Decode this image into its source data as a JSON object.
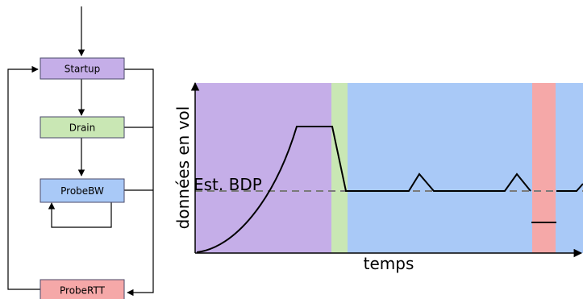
{
  "state_machine": {
    "states": [
      {
        "id": "startup",
        "label": "Startup",
        "color": "#c5aee8"
      },
      {
        "id": "drain",
        "label": "Drain",
        "color": "#c9e7b4"
      },
      {
        "id": "probebw",
        "label": "ProbeBW",
        "color": "#a9c9f7"
      },
      {
        "id": "probertt",
        "label": "ProbeRTT",
        "color": "#f5a8a8"
      }
    ]
  },
  "plot": {
    "xlabel": "temps",
    "ylabel": "données en vol",
    "bdp_label": "Est. BDP",
    "phase_colors": {
      "startup": "#c5aee8",
      "drain": "#c9e7b4",
      "probebw": "#a9c9f7",
      "probertt": "#f5a8a8"
    }
  }
}
